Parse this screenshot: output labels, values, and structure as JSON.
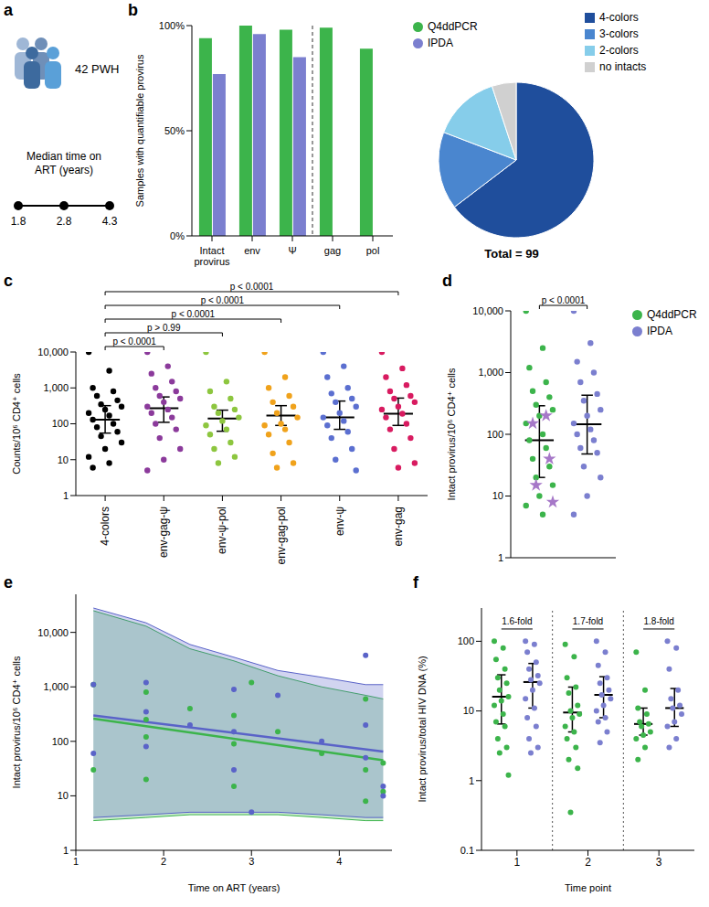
{
  "diagram": {
    "panel": "a",
    "cohort": "42 PWH",
    "timeline_title": "Median time on ART (years)",
    "timepoints": [
      1.8,
      2.8,
      4.3
    ]
  },
  "chart_data": [
    {
      "type": "bar",
      "panel": "b",
      "ylabel": "Samples with quantifiable provirus",
      "categories": [
        "Intact provirus",
        "env",
        "Ψ",
        "gag",
        "pol"
      ],
      "series": [
        {
          "name": "Q4ddPCR",
          "color": "#3cb44b",
          "values": [
            94,
            100,
            98,
            99,
            89
          ]
        },
        {
          "name": "IPDA",
          "color": "#7b7fcf",
          "values": [
            77,
            96,
            85,
            null,
            null
          ]
        }
      ],
      "ylim": [
        0,
        100
      ],
      "yticks": [
        {
          "value": 0,
          "label": "0%"
        },
        {
          "value": 50,
          "label": "50%"
        },
        {
          "value": 100,
          "label": "100%"
        }
      ],
      "legend": "right"
    },
    {
      "type": "pie",
      "categories": [
        "4-colors",
        "3-colors",
        "2-colors",
        "no intacts"
      ],
      "values": [
        64,
        16,
        14,
        5
      ],
      "colors": [
        "#1f4e9c",
        "#4a86cf",
        "#86cdea",
        "#d0d0d0"
      ],
      "total_label": "Total = 99",
      "legend": "right"
    },
    {
      "type": "scatter",
      "panel": "c",
      "ylabel": "Counts/10⁶ CD4⁺ cells",
      "categories": [
        "4-colors",
        "env-gag-ψ",
        "env-ψ-pol",
        "env-gag-pol",
        "env-ψ",
        "env-gag"
      ],
      "colors": [
        "#000000",
        "#8b3a9b",
        "#8dc63f",
        "#f0a21b",
        "#5b6fd0",
        "#d81b60"
      ],
      "values": [
        [
          10000,
          3000,
          1000,
          800,
          600,
          450,
          350,
          300,
          250,
          200,
          170,
          130,
          100,
          80,
          60,
          45,
          30,
          20,
          12,
          8,
          6
        ],
        [
          10000,
          4000,
          2500,
          1500,
          1000,
          800,
          600,
          500,
          400,
          300,
          250,
          200,
          150,
          100,
          70,
          40,
          20,
          10,
          5
        ],
        [
          10000,
          1500,
          800,
          500,
          300,
          250,
          200,
          150,
          120,
          90,
          70,
          50,
          30,
          20,
          12,
          8
        ],
        [
          10000,
          2000,
          1000,
          600,
          400,
          300,
          200,
          150,
          100,
          90,
          70,
          50,
          30,
          15,
          8,
          6
        ],
        [
          10000,
          4000,
          2000,
          1000,
          700,
          500,
          400,
          300,
          200,
          150,
          120,
          90,
          60,
          40,
          20,
          10,
          5
        ],
        [
          10000,
          3500,
          2000,
          1200,
          800,
          600,
          500,
          400,
          300,
          250,
          190,
          150,
          100,
          70,
          40,
          20,
          8,
          6
        ]
      ],
      "q1": [
        55,
        110,
        62,
        90,
        70,
        90
      ],
      "median": [
        130,
        270,
        140,
        170,
        150,
        190
      ],
      "q3": [
        320,
        560,
        240,
        320,
        430,
        520
      ],
      "ylim": [
        1,
        10000
      ],
      "yticks": [
        1,
        10,
        100,
        {
          "value": 1000,
          "label": "1,000"
        },
        {
          "value": 10000,
          "label": "10,000"
        }
      ],
      "log": "y",
      "comparisons": [
        {
          "pair": [
            "4-colors",
            "env-gag-ψ"
          ],
          "label": "p < 0.0001"
        },
        {
          "pair": [
            "4-colors",
            "env-ψ-pol"
          ],
          "label": "p > 0.99"
        },
        {
          "pair": [
            "4-colors",
            "env-gag-pol"
          ],
          "label": "p < 0.0001"
        },
        {
          "pair": [
            "4-colors",
            "env-ψ"
          ],
          "label": "p < 0.0001"
        },
        {
          "pair": [
            "4-colors",
            "env-gag"
          ],
          "label": "p < 0.0001"
        }
      ]
    },
    {
      "type": "scatter",
      "panel": "d",
      "ylabel": "Intact provirus/10⁶ CD4⁺ cells",
      "series": [
        {
          "name": "Q4ddPCR",
          "color": "#3cb44b",
          "values": [
            10000,
            2500,
            1200,
            700,
            500,
            400,
            300,
            250,
            200,
            150,
            100,
            80,
            60,
            40,
            30,
            20,
            15,
            10,
            7,
            5
          ],
          "q1": 20,
          "median": 80,
          "q3": 290
        },
        {
          "name": "IPDA",
          "color": "#7b7fcf",
          "values": [
            10000,
            3000,
            1500,
            1000,
            700,
            450,
            350,
            250,
            200,
            150,
            120,
            100,
            80,
            60,
            50,
            30,
            20,
            10,
            5
          ],
          "q1": 48,
          "median": 145,
          "q3": 430
        }
      ],
      "highlighted": {
        "color": "#a678c8",
        "marker": "star",
        "values": [
          200,
          150,
          40,
          15,
          8
        ]
      },
      "ylim": [
        1,
        10000
      ],
      "yticks": [
        1,
        10,
        100,
        {
          "value": 1000,
          "label": "1,000"
        },
        {
          "value": 10000,
          "label": "10,000"
        }
      ],
      "log": "y",
      "tick_labels": "y",
      "comparisons": [
        {
          "pair": [
            "Q4ddPCR",
            "IPDA"
          ],
          "label": "p < 0.0001"
        }
      ],
      "legend": "right"
    },
    {
      "type": "line",
      "panel": "e",
      "xlabel": "Time on ART (years)",
      "ylabel": "Intact provirus/10⁶ CD4⁺ cells",
      "xlim": [
        1,
        4.6
      ],
      "xticks": [
        1,
        2,
        3,
        4
      ],
      "ylim": [
        1,
        50000
      ],
      "yticks": [
        1,
        10,
        100,
        {
          "value": 1000,
          "label": "1,000"
        },
        {
          "value": 10000,
          "label": "10,000"
        }
      ],
      "log": "y",
      "band_x": [
        1.2,
        1.8,
        2.3,
        2.8,
        3.3,
        3.8,
        4.3,
        4.5
      ],
      "series": [
        {
          "name": "Q4ddPCR",
          "color": "#3cb44b",
          "points": {
            "x": [
              1.2,
              1.2,
              1.8,
              1.8,
              1.8,
              1.8,
              2.3,
              2.8,
              2.8,
              2.8,
              3.0,
              3.3,
              3.8,
              4.3,
              4.3,
              4.3,
              4.5,
              4.5
            ],
            "y": [
              30,
              1100,
              800,
              250,
              120,
              20,
              400,
              300,
              90,
              15,
              1200,
              150,
              60,
              600,
              30,
              8,
              40,
              12
            ]
          },
          "fit_x": [
            1.2,
            4.5
          ],
          "fit": [
            260,
            45
          ],
          "band_lower": [
            3.5,
            4,
            4.5,
            4.5,
            4.5,
            4,
            3.5,
            3.5
          ],
          "band_upper": [
            25000,
            13000,
            5000,
            3000,
            1600,
            1000,
            700,
            600
          ]
        },
        {
          "name": "IPDA",
          "color": "#5a63c8",
          "points": {
            "x": [
              1.2,
              1.2,
              1.8,
              1.8,
              1.8,
              2.3,
              2.8,
              2.8,
              2.8,
              3.0,
              3.3,
              3.8,
              4.3,
              4.3,
              4.3,
              4.5,
              4.5
            ],
            "y": [
              1100,
              60,
              1200,
              350,
              80,
              200,
              900,
              150,
              30,
              5,
              700,
              100,
              3800,
              200,
              50,
              10,
              15
            ]
          },
          "fit_x": [
            1.2,
            4.5
          ],
          "fit": [
            300,
            65
          ],
          "band_lower": [
            4,
            4.5,
            5,
            5,
            5,
            4.5,
            4,
            4
          ],
          "band_upper": [
            28000,
            15000,
            6000,
            3500,
            2000,
            1500,
            1100,
            1100
          ]
        }
      ]
    },
    {
      "type": "scatter",
      "panel": "f",
      "xlabel": "Time point",
      "ylabel": "Intact provirus/total HIV DNA (%)",
      "categories": [
        "1",
        "2",
        "3"
      ],
      "ylim": [
        0.1,
        300
      ],
      "yticks": [
        0.1,
        1,
        10,
        100
      ],
      "log": "y",
      "series": [
        {
          "name": "Q4ddPCR",
          "color": "#3cb44b",
          "values": [
            [
              100,
              80,
              55,
              40,
              30,
              25,
              20,
              16,
              14,
              12,
              9,
              7,
              6,
              4,
              3,
              2.5,
              1.2
            ],
            [
              90,
              60,
              30,
              22,
              18,
              12,
              10,
              9,
              8,
              6,
              5,
              4,
              3,
              2,
              1.5,
              0.35
            ],
            [
              70,
              20,
              11,
              9,
              7,
              6.5,
              6,
              5,
              4.5,
              4,
              3,
              2
            ]
          ],
          "q1": [
            6.5,
            5,
            4.5
          ],
          "median": [
            16,
            9.5,
            6.5
          ],
          "q3": [
            33,
            22,
            11
          ]
        },
        {
          "name": "IPDA",
          "color": "#7b7fcf",
          "values": [
            [
              100,
              90,
              70,
              50,
              40,
              32,
              28,
              25,
              20,
              15,
              11,
              8,
              6,
              4,
              3,
              2.5
            ],
            [
              100,
              70,
              45,
              30,
              25,
              20,
              17,
              15,
              12,
              10,
              8,
              7,
              5,
              3.5
            ],
            [
              100,
              80,
              40,
              20,
              15,
              12,
              11,
              9,
              7,
              6,
              4,
              3
            ]
          ],
          "q1": [
            11,
            8,
            6
          ],
          "median": [
            26,
            17,
            11
          ],
          "q3": [
            48,
            31,
            21
          ]
        }
      ],
      "fold_labels": [
        "1.6-fold",
        "1.7-fold",
        "1.8-fold"
      ]
    }
  ]
}
